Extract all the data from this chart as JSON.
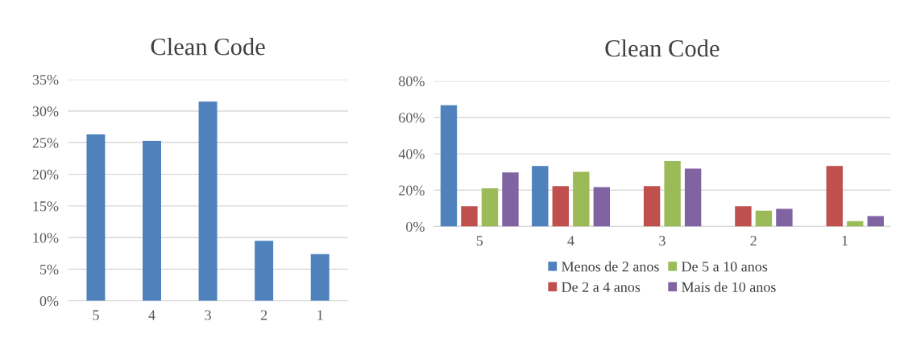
{
  "chart_data": [
    {
      "type": "bar",
      "title": "Clean Code",
      "categories": [
        "5",
        "4",
        "3",
        "2",
        "1"
      ],
      "series": [
        {
          "color": "#4f81bd",
          "values": [
            26.3,
            25.3,
            31.5,
            9.5,
            7.4
          ]
        }
      ],
      "ylim": [
        0,
        35
      ],
      "yticks": [
        {
          "value": 0,
          "label": "0%"
        },
        {
          "value": 5,
          "label": "5%"
        },
        {
          "value": 10,
          "label": "10%"
        },
        {
          "value": 15,
          "label": "15%"
        },
        {
          "value": 20,
          "label": "20%"
        },
        {
          "value": 25,
          "label": "25%"
        },
        {
          "value": 30,
          "label": "30%"
        },
        {
          "value": 35,
          "label": "35%"
        }
      ],
      "grid": "y",
      "legend": false
    },
    {
      "type": "bar",
      "title": "Clean Code",
      "categories": [
        "5",
        "4",
        "3",
        "2",
        "1"
      ],
      "series": [
        {
          "name": "Menos de 2 anos",
          "color": "#4f81bd",
          "values": [
            66.7,
            33.3,
            0,
            0,
            0
          ]
        },
        {
          "name": "De 2 a 4 anos",
          "color": "#c0504d",
          "values": [
            11.1,
            22.2,
            22.2,
            11.1,
            33.3
          ]
        },
        {
          "name": "De 5 a 10 anos",
          "color": "#9bbb59",
          "values": [
            21.0,
            30.1,
            36.1,
            8.7,
            2.9
          ]
        },
        {
          "name": "Mais de 10 anos",
          "color": "#8064a2",
          "values": [
            29.7,
            21.7,
            31.8,
            9.7,
            5.7
          ]
        }
      ],
      "ylim": [
        0,
        80
      ],
      "yticks": [
        {
          "value": 0,
          "label": "0%"
        },
        {
          "value": 20,
          "label": "20%"
        },
        {
          "value": 40,
          "label": "40%"
        },
        {
          "value": 60,
          "label": "60%"
        },
        {
          "value": 80,
          "label": "80%"
        }
      ],
      "grid": "y",
      "legend": "bottom"
    }
  ]
}
